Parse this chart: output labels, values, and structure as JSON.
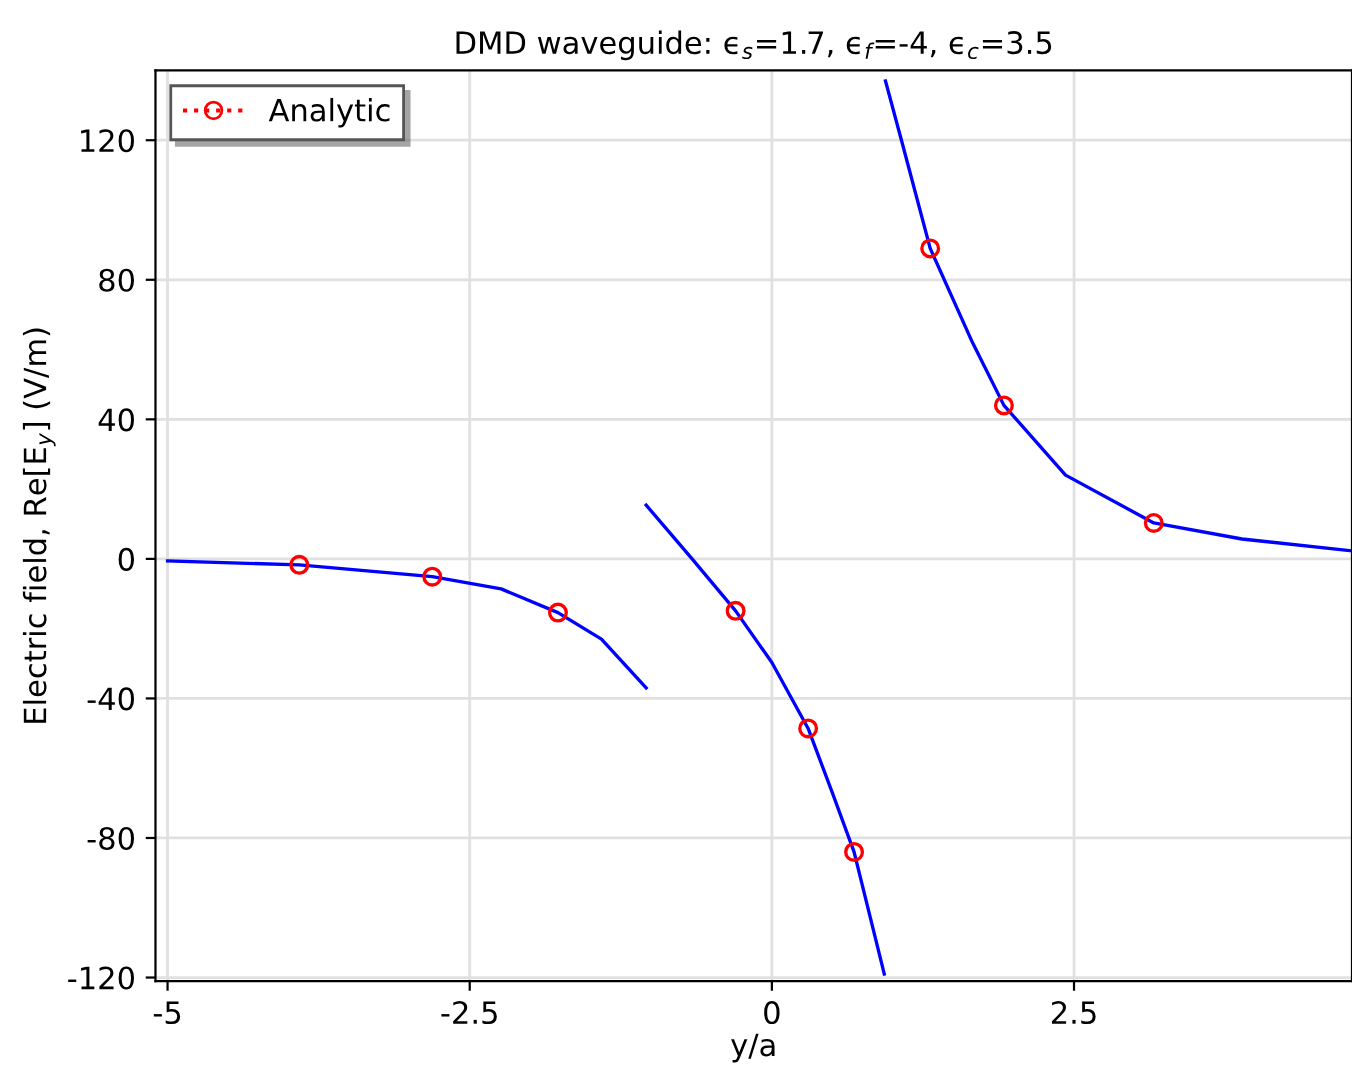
{
  "chart_data": {
    "type": "line",
    "title": "DMD waveguide: ϵ$_{s}$=1.7, ϵ$_{f}$=-4, ϵ$_{c}$=3.5",
    "xlabel": "y/a",
    "ylabel": "Electric field, Re[E$_{y}$] (V/m)",
    "xlim": [
      -5.1,
      4.8
    ],
    "ylim": [
      -121,
      140
    ],
    "xticks": [
      -5,
      -2.5,
      0,
      2.5
    ],
    "yticks": [
      -120,
      -80,
      -40,
      0,
      40,
      80,
      120
    ],
    "grid": true,
    "legend": "top left",
    "series": [
      {
        "color": "#0000ff",
        "line_style": "solid",
        "marker": "none",
        "x": [
          -5.0,
          -3.91,
          -2.81,
          -2.24,
          -1.77,
          -1.41,
          -1.04
        ],
        "values": [
          -0.6,
          -1.7,
          -5.1,
          -8.6,
          -15.4,
          -23,
          -37
        ]
      },
      {
        "color": "#0000ff",
        "line_style": "solid",
        "marker": "none",
        "x": [
          -1.04,
          -0.66,
          -0.3,
          0.0,
          0.3,
          0.5,
          0.68,
          0.93
        ],
        "values": [
          15.4,
          0,
          -14.9,
          -29.7,
          -48.6,
          -67,
          -84,
          -119
        ]
      },
      {
        "color": "#0000ff",
        "line_style": "solid",
        "marker": "none",
        "x": [
          0.94,
          1.08,
          1.31,
          1.66,
          1.92,
          2.43,
          3.16,
          3.89,
          4.8
        ],
        "values": [
          137,
          119,
          89,
          62,
          44,
          24,
          10.3,
          5.7,
          2.3
        ]
      },
      {
        "name": "Analytic",
        "type": "scatter",
        "color": "#ff0000",
        "line_style": "dotted",
        "marker": "circle",
        "x": [
          -3.91,
          -2.81,
          -1.77,
          -0.3,
          0.3,
          0.68,
          1.31,
          1.92,
          3.16
        ],
        "values": [
          -1.7,
          -5.1,
          -15.4,
          -14.9,
          -48.6,
          -84,
          89,
          44,
          10.3
        ]
      }
    ]
  }
}
